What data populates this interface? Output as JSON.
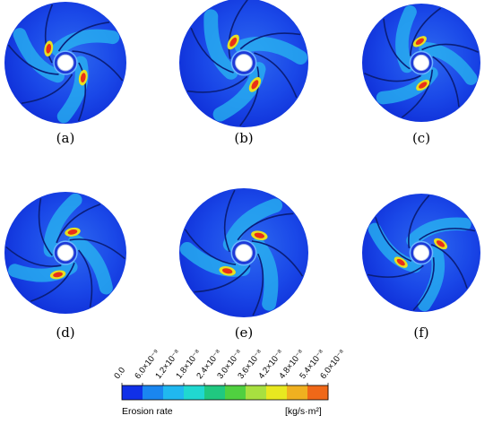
{
  "panels": [
    {
      "caption": "(a)"
    },
    {
      "caption": "(b)"
    },
    {
      "caption": "(c)"
    },
    {
      "caption": "(d)"
    },
    {
      "caption": "(e)"
    },
    {
      "caption": "(f)"
    }
  ],
  "colorbar": {
    "tick_labels": [
      "0.0",
      "6.0×10⁻⁹",
      "1.2×10⁻⁸",
      "1.8×10⁻⁸",
      "2.4×10⁻⁸",
      "3.0×10⁻⁸",
      "3.6×10⁻⁸",
      "4.2×10⁻⁸",
      "4.8×10⁻⁸",
      "5.4×10⁻⁸",
      "6.0×10⁻⁸"
    ],
    "colors": [
      "#1030e8",
      "#1a86f0",
      "#20b8f0",
      "#20d8d0",
      "#20c880",
      "#50d040",
      "#a8e040",
      "#e8e820",
      "#f0b020",
      "#f06818"
    ],
    "left_label": "Erosion rate",
    "unit_label": "[kg/s·m²]"
  }
}
